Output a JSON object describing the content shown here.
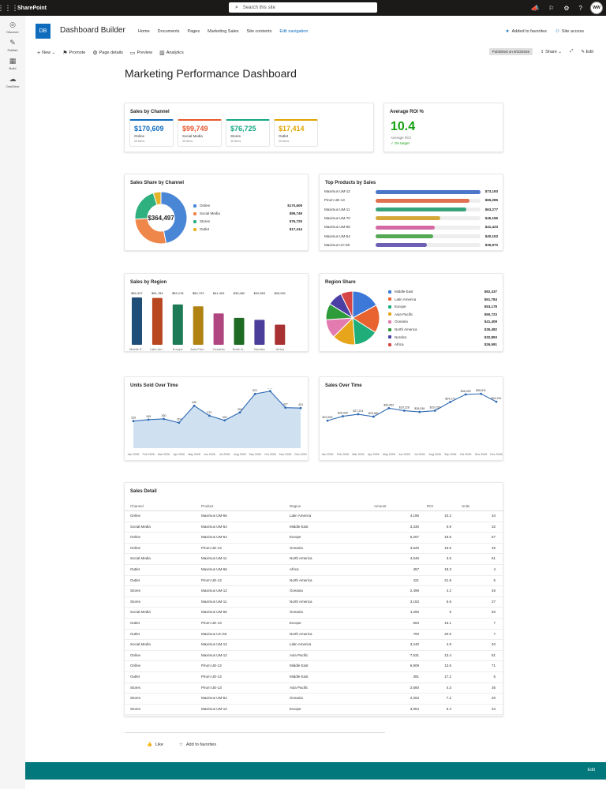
{
  "suite": {
    "brand": "SharePoint",
    "search_placeholder": "Search this site",
    "avatar_initials": "WW"
  },
  "appbar": [
    {
      "label": "Discover",
      "icon": "compass-icon"
    },
    {
      "label": "Publish",
      "icon": "pen-icon"
    },
    {
      "label": "Build",
      "icon": "grid-icon"
    },
    {
      "label": "OneDrive",
      "icon": "cloud-icon"
    }
  ],
  "site": {
    "logo": "DB",
    "title": "Dashboard Builder",
    "nav": [
      "Home",
      "Documents",
      "Pages",
      "Marketing Sales",
      "Site contents",
      "Edit navigation"
    ],
    "favorites": "Added to favorites",
    "access": "Site access"
  },
  "commands": {
    "new": "New",
    "promote": "Promote",
    "page_details": "Page details",
    "preview": "Preview",
    "analytics": "Analytics",
    "published": "Published on 9/10/2026",
    "share": "Share",
    "edit": "Edit"
  },
  "page_title": "Marketing Performance Dashboard",
  "kpi": {
    "title": "Sales by Channel",
    "tiles": [
      {
        "value": "$170,609",
        "label": "Online",
        "sub": "36 items",
        "color": "#0f6cbd"
      },
      {
        "value": "$99,749",
        "label": "Social Media",
        "sub": "36 items",
        "color": "#e8572d"
      },
      {
        "value": "$76,725",
        "label": "Stores",
        "sub": "36 items",
        "color": "#13a785"
      },
      {
        "value": "$17,414",
        "label": "Outlet",
        "sub": "36 items",
        "color": "#e0a400"
      }
    ]
  },
  "roi": {
    "title": "Average ROI %",
    "value": "10.4",
    "label": "Average ROI",
    "status": "✓ On target"
  },
  "share": {
    "title": "Sales Share by Channel",
    "center": "$364,497",
    "items": [
      {
        "name": "Online",
        "value": 170609,
        "display": "$170,609",
        "color": "#4a86d6"
      },
      {
        "name": "Social Media",
        "value": 99749,
        "display": "$99,749",
        "color": "#f0874a"
      },
      {
        "name": "Stores",
        "value": 76725,
        "display": "$76,725",
        "color": "#2fb07f"
      },
      {
        "name": "Outlet",
        "value": 17414,
        "display": "$17,414",
        "color": "#e5b22a"
      }
    ]
  },
  "top_products": {
    "title": "Top Products by Sales",
    "max": 73193,
    "items": [
      {
        "name": "Maximus UM-12",
        "value": 73193,
        "display": "$73,193",
        "color": "#4a77c9"
      },
      {
        "name": "Pirum UE-13",
        "value": 65285,
        "display": "$65,285",
        "color": "#e07050"
      },
      {
        "name": "Maximus UM-11",
        "value": 63277,
        "display": "$63,277",
        "color": "#37a37a"
      },
      {
        "name": "Maximus UM-70",
        "value": 45196,
        "display": "$45,196",
        "color": "#d6a83a"
      },
      {
        "name": "Maximus UM-66",
        "value": 41423,
        "display": "$41,423",
        "color": "#d46aa3"
      },
      {
        "name": "Maximus UM-54",
        "value": 40153,
        "display": "$40,153",
        "color": "#55a854"
      },
      {
        "name": "Maximus UC-50",
        "value": 35970,
        "display": "$35,970",
        "color": "#6e5fb5"
      }
    ]
  },
  "chart_data": [
    {
      "type": "bar",
      "title": "Sales by Region",
      "categories": [
        "Middle E...",
        "Latin Am...",
        "Europe",
        "Asia Paci...",
        "Oceania",
        "North A...",
        "Nordics",
        "Africa"
      ],
      "values": [
        62437,
        61784,
        53178,
        50723,
        41409,
        35482,
        32893,
        26591
      ],
      "labels": [
        "$62,437",
        "$61,784",
        "$53,178",
        "$50,723",
        "$41,409",
        "$35,482",
        "$32,893",
        "$26,591"
      ],
      "colors": [
        "#1f4e79",
        "#b8461f",
        "#1e7b57",
        "#b08212",
        "#b04680",
        "#1f6b24",
        "#4a3e9a",
        "#a83232"
      ],
      "ylim": [
        0,
        62437
      ]
    },
    {
      "type": "pie",
      "title": "Region Share",
      "categories": [
        "Middle East",
        "Latin America",
        "Europe",
        "Asia Pacific",
        "Oceania",
        "North America",
        "Nordics",
        "Africa"
      ],
      "values": [
        62437,
        61784,
        53178,
        50723,
        41409,
        35482,
        32893,
        26591
      ],
      "labels": [
        "$62,437",
        "$61,784",
        "$53,178",
        "$50,723",
        "$41,409",
        "$35,482",
        "$32,893",
        "$26,591"
      ],
      "colors": [
        "#3b78d8",
        "#e8632f",
        "#1fae7a",
        "#e6a51b",
        "#e37bb0",
        "#2e9b3a",
        "#4b3fa6",
        "#d64545"
      ]
    },
    {
      "type": "area",
      "title": "Units Sold Over Time",
      "x": [
        "Jan 2026",
        "Feb 2026",
        "Mar 2026",
        "Apr 2026",
        "May 2026",
        "Jun 2026",
        "Jul 2026",
        "Aug 2026",
        "Sep 2026",
        "Oct 2026",
        "Nov 2026",
        "Dec 2026"
      ],
      "values": [
        335,
        345,
        350,
        324,
        440,
        372,
        340,
        394,
        521,
        540,
        427,
        424
      ],
      "ylim": [
        150,
        560
      ]
    },
    {
      "type": "line",
      "title": "Sales Over Time",
      "x": [
        "Jan 2026",
        "Feb 2026",
        "Mar 2026",
        "Apr 2026",
        "May 2026",
        "Jun 2026",
        "Jul 2026",
        "Aug 2026",
        "Sep 2026",
        "Oct 2026",
        "Nov 2026",
        "Dec 2026"
      ],
      "values": [
        23593,
        26090,
        27224,
        25861,
        30652,
        29228,
        28538,
        29235,
        34177,
        38459,
        38811,
        34331
      ],
      "labels": [
        "$23,593",
        "$26,090",
        "$27,224",
        "$25,861",
        "$30,652",
        "$29,228",
        "$28,538",
        "$29,235",
        "$34,177",
        "$38,459",
        "$38,811",
        "$34,331"
      ],
      "ylim": [
        8000,
        42000
      ]
    }
  ],
  "table": {
    "title": "Sales Detail",
    "columns": [
      "Channel",
      "Product",
      "Region",
      "Amount",
      "ROI",
      "Units"
    ],
    "rows": [
      [
        "Online",
        "Maximus UM-66",
        "Latin America",
        "4,195",
        "10.2",
        "34"
      ],
      [
        "Social Media",
        "Maximus UM-54",
        "Middle East",
        "3,330",
        "0.9",
        "32"
      ],
      [
        "Online",
        "Maximus UM-54",
        "Europe",
        "5,267",
        "19.6",
        "57"
      ],
      [
        "Online",
        "Pirum UE-13",
        "Oceania",
        "3,625",
        "15.6",
        "45"
      ],
      [
        "Social Media",
        "Maximus UM-11",
        "North America",
        "4,046",
        "3.6",
        "61"
      ],
      [
        "Outlet",
        "Maximus UM-66",
        "Africa",
        "457",
        "18.3",
        "4"
      ],
      [
        "Outlet",
        "Pirum UE-13",
        "North America",
        "421",
        "21.8",
        "5"
      ],
      [
        "Stores",
        "Maximus UM-12",
        "Oceania",
        "2,499",
        "4.2",
        "45"
      ],
      [
        "Stores",
        "Maximus UM-11",
        "North America",
        "3,153",
        "5.6",
        "27"
      ],
      [
        "Social Media",
        "Maximus UM-66",
        "Oceania",
        "4,265",
        "5",
        "82"
      ],
      [
        "Outlet",
        "Pirum UE-13",
        "Europe",
        "663",
        "15.1",
        "7"
      ],
      [
        "Outlet",
        "Maximus UC-50",
        "North America",
        "700",
        "20.5",
        "7"
      ],
      [
        "Social Media",
        "Maximus UM-12",
        "Latin America",
        "3,240",
        "4.8",
        "40"
      ],
      [
        "Online",
        "Maximus UM-12",
        "Asia Pacific",
        "7,531",
        "13.4",
        "81"
      ],
      [
        "Online",
        "Pirum UE-13",
        "Middle East",
        "6,909",
        "13.6",
        "71"
      ],
      [
        "Outlet",
        "Pirum UE-13",
        "Middle East",
        "391",
        "17.2",
        "5"
      ],
      [
        "Stores",
        "Pirum UE-13",
        "Asia Pacific",
        "2,560",
        "4.3",
        "35"
      ],
      [
        "Stores",
        "Maximus UM-54",
        "Oceania",
        "2,263",
        "7.2",
        "20"
      ],
      [
        "Stores",
        "Maximus UM-12",
        "Europe",
        "3,064",
        "5.4",
        "34"
      ]
    ]
  },
  "footer": {
    "like": "Like",
    "favorites": "Add to favorites",
    "edit": "Edit"
  }
}
